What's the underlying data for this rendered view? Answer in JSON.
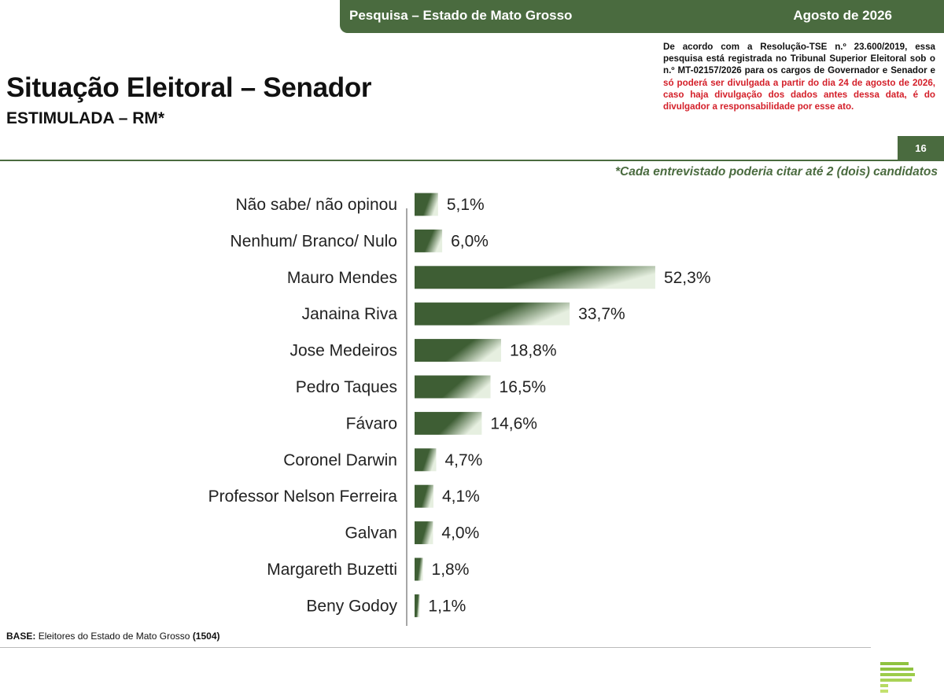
{
  "header": {
    "survey": "Pesquisa – Estado de Mato Grosso",
    "date": "Agosto de 2026",
    "page_number": "16"
  },
  "legal": {
    "normal": "De acordo com a Resolução-TSE n.º 23.600/2019, essa pesquisa está registrada no Tribunal Superior Eleitoral sob o n.º MT-02157/2026 para os cargos de Governador e Senador e ",
    "highlight": "só poderá ser divulgada a partir do dia 24 de agosto de 2026, caso haja divulgação dos dados antes dessa data, é do divulgador a responsabilidade por esse ato."
  },
  "title": "Situação Eleitoral – Senador",
  "subtitle": "ESTIMULADA – RM*",
  "footnote": "*Cada entrevistado poderia citar até 2 (dois) candidatos",
  "base": {
    "label": "BASE:",
    "text": "Eleitores do Estado de Mato Grosso",
    "count": "(1504)"
  },
  "colors": {
    "accent": "#4a6b3f",
    "bar_dark": "#3e5e34",
    "bar_light": "#e6efe0",
    "legal_red": "#d4202a"
  },
  "chart_data": {
    "type": "bar",
    "orientation": "horizontal",
    "categories": [
      "Não sabe/ não opinou",
      "Nenhum/ Branco/ Nulo",
      "Mauro Mendes",
      "Janaina Riva",
      "Jose Medeiros",
      "Pedro Taques",
      "Fávaro",
      "Coronel Darwin",
      "Professor Nelson Ferreira",
      "Galvan",
      "Margareth Buzetti",
      "Beny Godoy"
    ],
    "values": [
      5.1,
      6.0,
      52.3,
      33.7,
      18.8,
      16.5,
      14.6,
      4.7,
      4.1,
      4.0,
      1.8,
      1.1
    ],
    "value_labels": [
      "5,1%",
      "6,0%",
      "52,3%",
      "33,7%",
      "18,8%",
      "16,5%",
      "14,6%",
      "4,7%",
      "4,1%",
      "4,0%",
      "1,8%",
      "1,1%"
    ],
    "unit": "%",
    "grid": false,
    "legend": "none"
  }
}
